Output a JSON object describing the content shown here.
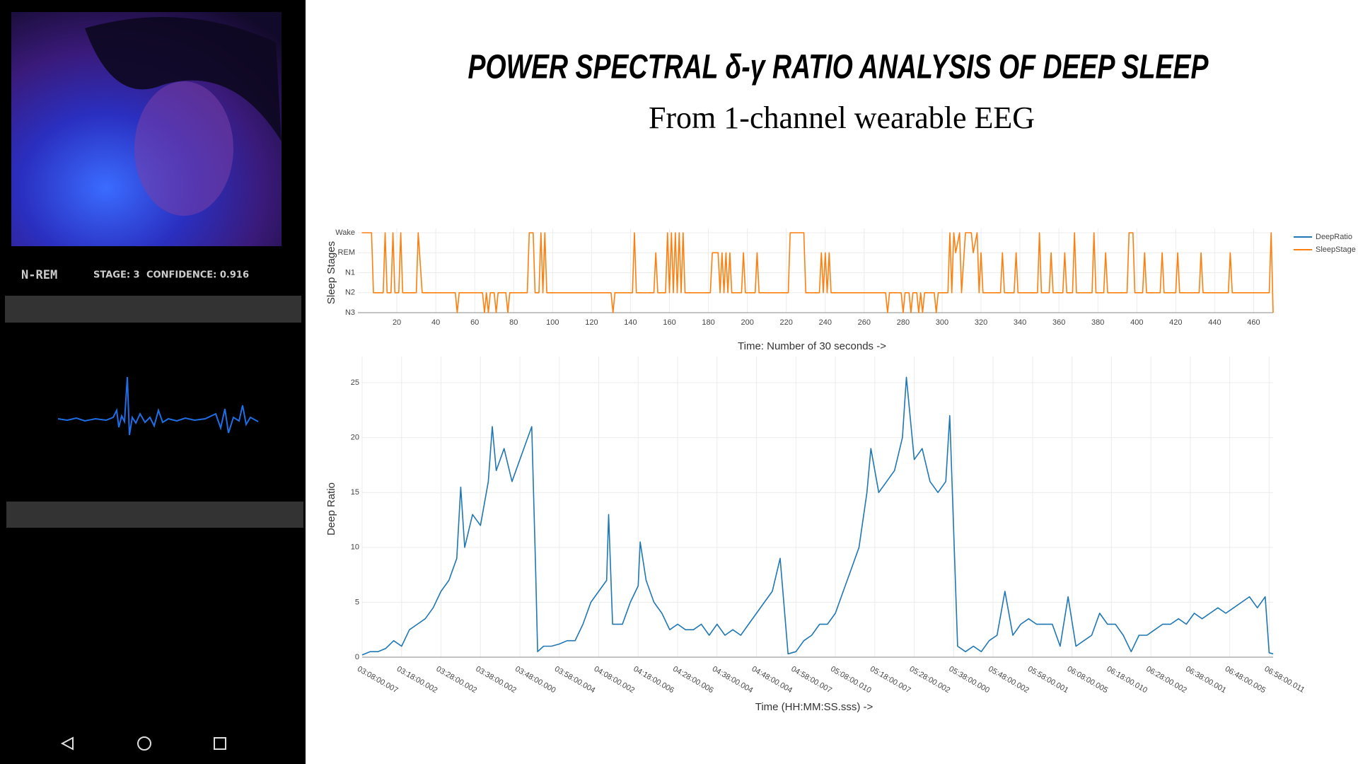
{
  "header": {
    "title": "POWER SPECTRAL δ-γ RATIO ANALYSIS OF DEEP SLEEP",
    "subtitle": "From 1-channel wearable EEG"
  },
  "phone": {
    "status": "N-REM",
    "stage": "STAGE: 3",
    "confidence": "CONFIDENCE: 0.916"
  },
  "chart_data": [
    {
      "type": "line",
      "ylabel": "Sleep Stages",
      "xlabel": "Time: Number of 30 seconds ->",
      "xlim": [
        0,
        470
      ],
      "xticks": [
        20,
        40,
        60,
        80,
        100,
        120,
        140,
        160,
        180,
        200,
        220,
        240,
        260,
        280,
        300,
        320,
        340,
        360,
        380,
        400,
        420,
        440,
        460
      ],
      "ylim": [
        0,
        4
      ],
      "yticks": [
        {
          "value": 4,
          "label": "Wake"
        },
        {
          "value": 3,
          "label": "REM"
        },
        {
          "value": 2,
          "label": "N1"
        },
        {
          "value": 1,
          "label": "N2"
        },
        {
          "value": 0,
          "label": "N3"
        }
      ],
      "grid": true,
      "series": [
        {
          "name": "SleepStage",
          "color": "#ff7f0e",
          "x": [
            2,
            7,
            8,
            13,
            14,
            15,
            17,
            18,
            19,
            21,
            22,
            23,
            30,
            31,
            33,
            50,
            51,
            52,
            64,
            65,
            66,
            67,
            68,
            70,
            71,
            72,
            76,
            77,
            78,
            87,
            88,
            90,
            91,
            93,
            94,
            95,
            96,
            97,
            130,
            131,
            132,
            141,
            142,
            143,
            152,
            153,
            154,
            158,
            159,
            160,
            161,
            162,
            163,
            164,
            165,
            166,
            167,
            168,
            181,
            182,
            185,
            186,
            187,
            188,
            189,
            190,
            191,
            192,
            197,
            198,
            199,
            204,
            205,
            206,
            221,
            222,
            229,
            230,
            237,
            238,
            239,
            240,
            241,
            242,
            243,
            271,
            272,
            273,
            279,
            280,
            281,
            283,
            284,
            285,
            287,
            288,
            289,
            290,
            291,
            296,
            297,
            298,
            303,
            304,
            305,
            306,
            307,
            309,
            310,
            312,
            315,
            316,
            318,
            319,
            320,
            321,
            330,
            331,
            332,
            337,
            338,
            339,
            349,
            350,
            351,
            355,
            356,
            357,
            362,
            363,
            364,
            367,
            368,
            369,
            377,
            378,
            379,
            383,
            384,
            385,
            395,
            396,
            398,
            399,
            403,
            404,
            405,
            412,
            413,
            414,
            420,
            421,
            422,
            432,
            433,
            434,
            447,
            448,
            449,
            468,
            469,
            470
          ],
          "values": [
            4,
            4,
            1,
            1,
            4,
            1,
            1,
            4,
            1,
            1,
            4,
            1,
            1,
            4,
            1,
            1,
            0,
            1,
            1,
            0,
            1,
            0,
            1,
            1,
            0,
            1,
            1,
            0,
            1,
            1,
            4,
            4,
            1,
            1,
            4,
            1,
            4,
            1,
            1,
            0,
            1,
            1,
            4,
            1,
            1,
            3,
            1,
            1,
            4,
            1,
            4,
            1,
            4,
            1,
            4,
            1,
            4,
            1,
            1,
            3,
            3,
            1,
            3,
            1,
            3,
            1,
            3,
            1,
            1,
            3,
            1,
            1,
            3,
            1,
            1,
            4,
            4,
            1,
            1,
            3,
            1,
            3,
            1,
            3,
            1,
            1,
            0,
            1,
            1,
            0,
            1,
            1,
            0,
            1,
            1,
            0,
            1,
            0,
            1,
            1,
            0,
            1,
            1,
            4,
            1,
            4,
            3,
            4,
            1,
            4,
            4,
            3,
            4,
            1,
            3,
            1,
            1,
            3,
            1,
            1,
            3,
            1,
            1,
            4,
            1,
            1,
            3,
            1,
            1,
            3,
            1,
            1,
            4,
            1,
            1,
            4,
            1,
            1,
            3,
            1,
            1,
            4,
            4,
            1,
            1,
            3,
            1,
            1,
            3,
            1,
            1,
            3,
            1,
            1,
            3,
            1,
            1,
            3,
            1,
            1,
            4,
            0
          ]
        }
      ]
    },
    {
      "type": "line",
      "ylabel": "Deep Ratio",
      "xlabel": "Time (HH:MM:SS.sss) ->",
      "xlim": [
        0,
        462
      ],
      "xticks": [
        {
          "value": 0,
          "label": "03:08:00.007"
        },
        {
          "value": 20,
          "label": "03:18:00.002"
        },
        {
          "value": 40,
          "label": "03:28:00.002"
        },
        {
          "value": 60,
          "label": "03:38:00.002"
        },
        {
          "value": 80,
          "label": "03:48:00.000"
        },
        {
          "value": 100,
          "label": "03:58:00.004"
        },
        {
          "value": 120,
          "label": "04:08:00.002"
        },
        {
          "value": 140,
          "label": "04:18:00.006"
        },
        {
          "value": 160,
          "label": "04:28:00.006"
        },
        {
          "value": 180,
          "label": "04:38:00.004"
        },
        {
          "value": 200,
          "label": "04:48:00.004"
        },
        {
          "value": 220,
          "label": "04:58:00.007"
        },
        {
          "value": 240,
          "label": "05:08:00.010"
        },
        {
          "value": 260,
          "label": "05:18:00.007"
        },
        {
          "value": 280,
          "label": "05:28:00.002"
        },
        {
          "value": 300,
          "label": "05:38:00.000"
        },
        {
          "value": 320,
          "label": "05:48:00.002"
        },
        {
          "value": 340,
          "label": "05:58:00.001"
        },
        {
          "value": 360,
          "label": "06:08:00.005"
        },
        {
          "value": 380,
          "label": "06:18:00.010"
        },
        {
          "value": 400,
          "label": "06:28:00.002"
        },
        {
          "value": 420,
          "label": "06:38:00.001"
        },
        {
          "value": 440,
          "label": "06:48:00.005"
        },
        {
          "value": 460,
          "label": "06:58:00.011"
        }
      ],
      "ylim": [
        0,
        27
      ],
      "yticks": [
        0,
        5,
        10,
        15,
        20,
        25
      ],
      "grid": true,
      "series": [
        {
          "name": "DeepRatio",
          "color": "#1f77b4",
          "x": [
            0,
            4,
            8,
            12,
            16,
            20,
            24,
            28,
            32,
            36,
            40,
            44,
            48,
            50,
            52,
            56,
            60,
            64,
            66,
            68,
            72,
            76,
            80,
            84,
            86,
            88,
            89,
            92,
            96,
            100,
            104,
            108,
            112,
            116,
            120,
            124,
            125,
            127,
            132,
            136,
            140,
            141,
            144,
            148,
            152,
            156,
            160,
            164,
            168,
            172,
            176,
            180,
            184,
            188,
            192,
            196,
            200,
            204,
            208,
            212,
            216,
            220,
            224,
            228,
            232,
            236,
            240,
            244,
            248,
            252,
            256,
            258,
            262,
            266,
            270,
            274,
            276,
            280,
            284,
            288,
            292,
            296,
            298,
            302,
            306,
            310,
            314,
            318,
            322,
            326,
            330,
            334,
            338,
            342,
            346,
            350,
            354,
            358,
            362,
            366,
            370,
            374,
            378,
            382,
            386,
            390,
            394,
            398,
            402,
            406,
            410,
            414,
            418,
            422,
            426,
            430,
            434,
            438,
            442,
            446,
            450,
            454,
            458,
            460,
            462
          ],
          "values": [
            0.2,
            0.5,
            0.5,
            0.8,
            1.5,
            1,
            2.5,
            3,
            3.5,
            4.5,
            6,
            7,
            9,
            15.5,
            10,
            13,
            12,
            16,
            21,
            17,
            19,
            16,
            18,
            20,
            21,
            8,
            0.5,
            1,
            1,
            1.2,
            1.5,
            1.5,
            3,
            5,
            6,
            7,
            13,
            3,
            3,
            5,
            6.5,
            10.5,
            7,
            5,
            4,
            2.5,
            3,
            2.5,
            2.5,
            3,
            2,
            3,
            2,
            2.5,
            2,
            3,
            4,
            5,
            6,
            9,
            0.3,
            0.5,
            1.5,
            2,
            3,
            3,
            4,
            6,
            8,
            10,
            15,
            19,
            15,
            16,
            17,
            20,
            25.5,
            18,
            19,
            16,
            15,
            16,
            22,
            1,
            0.5,
            1,
            0.5,
            1.5,
            2,
            6,
            2,
            3,
            3.5,
            3,
            3,
            3,
            1,
            5.5,
            1,
            1.5,
            2,
            4,
            3,
            3,
            2,
            0.5,
            2,
            2,
            2.5,
            3,
            3,
            3.5,
            3,
            4,
            3.5,
            4,
            4.5,
            4,
            4.5,
            5,
            5.5,
            4.5,
            5.5,
            0.4,
            0.3
          ]
        }
      ]
    }
  ]
}
